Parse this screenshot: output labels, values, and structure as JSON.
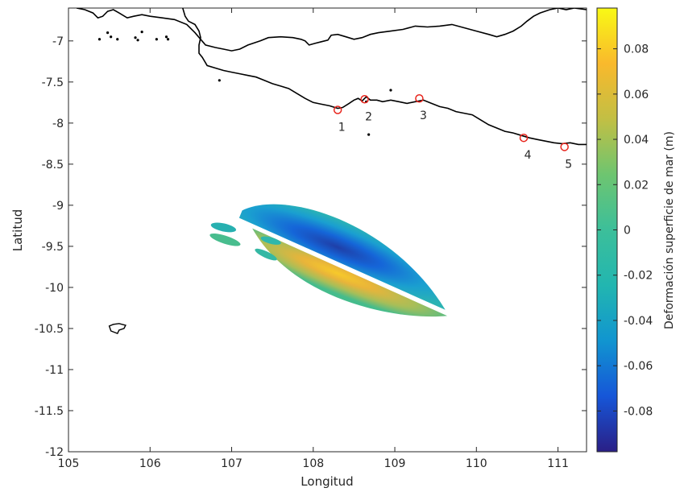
{
  "map": {
    "xlabel": "Longitud",
    "ylabel": "Latitud",
    "xlim": [
      105,
      111.35
    ],
    "ylim": [
      -12,
      -6.6
    ],
    "x_ticks": [
      105,
      106,
      107,
      108,
      109,
      110,
      111
    ],
    "y_ticks": [
      -12,
      -11.5,
      -11,
      -10.5,
      -10,
      -9.5,
      -9,
      -8.5,
      -8,
      -7.5,
      -7
    ],
    "coastline_java": [
      [
        105.1,
        -6.6
      ],
      [
        105.2,
        -6.62
      ],
      [
        105.3,
        -6.66
      ],
      [
        105.36,
        -6.72
      ],
      [
        105.42,
        -6.7
      ],
      [
        105.48,
        -6.64
      ],
      [
        105.55,
        -6.62
      ],
      [
        105.62,
        -6.66
      ],
      [
        105.72,
        -6.72
      ],
      [
        105.8,
        -6.7
      ],
      [
        105.9,
        -6.68
      ],
      [
        106.0,
        -6.7
      ],
      [
        106.15,
        -6.72
      ],
      [
        106.3,
        -6.74
      ],
      [
        106.45,
        -6.8
      ],
      [
        106.55,
        -6.9
      ],
      [
        106.62,
        -6.98
      ],
      [
        106.68,
        -7.05
      ],
      [
        106.8,
        -7.08
      ],
      [
        106.9,
        -7.1
      ],
      [
        107.0,
        -7.12
      ],
      [
        107.1,
        -7.1
      ],
      [
        107.2,
        -7.05
      ],
      [
        107.35,
        -7.0
      ],
      [
        107.45,
        -6.96
      ],
      [
        107.6,
        -6.95
      ],
      [
        107.75,
        -6.96
      ],
      [
        107.85,
        -6.98
      ],
      [
        107.9,
        -7.0
      ],
      [
        107.95,
        -7.05
      ],
      [
        108.02,
        -7.03
      ],
      [
        108.1,
        -7.01
      ],
      [
        108.18,
        -6.99
      ],
      [
        108.22,
        -6.93
      ],
      [
        108.3,
        -6.92
      ],
      [
        108.4,
        -6.95
      ],
      [
        108.5,
        -6.98
      ],
      [
        108.6,
        -6.96
      ],
      [
        108.7,
        -6.92
      ],
      [
        108.8,
        -6.9
      ],
      [
        108.95,
        -6.88
      ],
      [
        109.1,
        -6.86
      ],
      [
        109.25,
        -6.82
      ],
      [
        109.4,
        -6.83
      ],
      [
        109.55,
        -6.82
      ],
      [
        109.7,
        -6.8
      ],
      [
        109.85,
        -6.84
      ],
      [
        110.0,
        -6.88
      ],
      [
        110.15,
        -6.92
      ],
      [
        110.25,
        -6.95
      ],
      [
        110.35,
        -6.92
      ],
      [
        110.45,
        -6.88
      ],
      [
        110.55,
        -6.82
      ],
      [
        110.62,
        -6.76
      ],
      [
        110.7,
        -6.7
      ],
      [
        110.78,
        -6.66
      ],
      [
        110.9,
        -6.62
      ],
      [
        111.0,
        -6.6
      ],
      [
        111.1,
        -6.62
      ],
      [
        111.2,
        -6.6
      ],
      [
        111.35,
        -6.62
      ]
    ],
    "coastline_java_south": [
      [
        106.4,
        -6.6
      ],
      [
        106.43,
        -6.7
      ],
      [
        106.47,
        -6.76
      ],
      [
        106.55,
        -6.8
      ],
      [
        106.6,
        -6.88
      ],
      [
        106.62,
        -6.96
      ],
      [
        106.6,
        -7.05
      ],
      [
        106.6,
        -7.15
      ],
      [
        106.64,
        -7.2
      ],
      [
        106.7,
        -7.3
      ],
      [
        106.8,
        -7.33
      ],
      [
        106.9,
        -7.36
      ],
      [
        107.0,
        -7.38
      ],
      [
        107.1,
        -7.4
      ],
      [
        107.2,
        -7.42
      ],
      [
        107.3,
        -7.44
      ],
      [
        107.4,
        -7.48
      ],
      [
        107.5,
        -7.52
      ],
      [
        107.6,
        -7.55
      ],
      [
        107.7,
        -7.58
      ],
      [
        107.8,
        -7.64
      ],
      [
        107.9,
        -7.7
      ],
      [
        108.0,
        -7.75
      ],
      [
        108.1,
        -7.77
      ],
      [
        108.2,
        -7.79
      ],
      [
        108.3,
        -7.82
      ],
      [
        108.36,
        -7.81
      ],
      [
        108.44,
        -7.76
      ],
      [
        108.5,
        -7.72
      ],
      [
        108.55,
        -7.7
      ],
      [
        108.6,
        -7.73
      ],
      [
        108.65,
        -7.68
      ],
      [
        108.7,
        -7.72
      ],
      [
        108.78,
        -7.72
      ],
      [
        108.85,
        -7.74
      ],
      [
        108.95,
        -7.72
      ],
      [
        109.05,
        -7.74
      ],
      [
        109.15,
        -7.76
      ],
      [
        109.25,
        -7.74
      ],
      [
        109.35,
        -7.72
      ],
      [
        109.45,
        -7.76
      ],
      [
        109.55,
        -7.8
      ],
      [
        109.65,
        -7.82
      ],
      [
        109.75,
        -7.86
      ],
      [
        109.85,
        -7.88
      ],
      [
        109.95,
        -7.9
      ],
      [
        110.05,
        -7.96
      ],
      [
        110.15,
        -8.02
      ],
      [
        110.25,
        -8.06
      ],
      [
        110.35,
        -8.1
      ],
      [
        110.45,
        -8.12
      ],
      [
        110.55,
        -8.15
      ],
      [
        110.65,
        -8.18
      ],
      [
        110.75,
        -8.2
      ],
      [
        110.85,
        -8.22
      ],
      [
        110.95,
        -8.24
      ],
      [
        111.05,
        -8.25
      ],
      [
        111.15,
        -8.24
      ],
      [
        111.25,
        -8.26
      ],
      [
        111.35,
        -8.26
      ]
    ],
    "island_enggano": [
      [
        105.5,
        -10.47
      ],
      [
        105.55,
        -10.45
      ],
      [
        105.62,
        -10.44
      ],
      [
        105.7,
        -10.46
      ],
      [
        105.68,
        -10.5
      ],
      [
        105.62,
        -10.52
      ],
      [
        105.6,
        -10.56
      ],
      [
        105.52,
        -10.53
      ],
      [
        105.5,
        -10.47
      ]
    ],
    "islets": [
      [
        105.38,
        -6.98
      ],
      [
        105.52,
        -6.95
      ],
      [
        105.48,
        -6.9
      ],
      [
        105.6,
        -6.98
      ],
      [
        105.82,
        -6.96
      ],
      [
        105.85,
        -6.99
      ],
      [
        106.2,
        -6.95
      ],
      [
        106.22,
        -6.98
      ],
      [
        106.08,
        -6.98
      ],
      [
        105.9,
        -6.89
      ],
      [
        106.85,
        -7.48
      ],
      [
        108.68,
        -8.14
      ],
      [
        108.95,
        -7.6
      ],
      [
        108.65,
        -7.74
      ]
    ]
  },
  "stations": [
    {
      "label": "1",
      "lon": 108.3,
      "lat": -7.84
    },
    {
      "label": "2",
      "lon": 108.63,
      "lat": -7.71
    },
    {
      "label": "3",
      "lon": 109.3,
      "lat": -7.7
    },
    {
      "label": "4",
      "lon": 110.58,
      "lat": -8.18
    },
    {
      "label": "5",
      "lon": 111.08,
      "lat": -8.29
    }
  ],
  "deformation": {
    "center": [
      108.3,
      -9.85
    ],
    "description_values": {
      "max": 0.095,
      "min": -0.095
    }
  },
  "colorbar": {
    "label": "Deformación superficie de mar (m)",
    "range": [
      -0.098,
      0.098
    ],
    "ticks": [
      "0.08",
      "0.06",
      "0.04",
      "0.02",
      "0",
      "-0.02",
      "-0.04",
      "-0.06",
      "-0.08"
    ],
    "tick_values": [
      0.08,
      0.06,
      0.04,
      0.02,
      0,
      -0.02,
      -0.04,
      -0.06,
      -0.08
    ],
    "colors": [
      "#2a1f86",
      "#1656d8",
      "#1195d0",
      "#22b6b0",
      "#6ec570",
      "#c2bf44",
      "#f9b92c",
      "#f2d72b",
      "#f9f915"
    ]
  }
}
